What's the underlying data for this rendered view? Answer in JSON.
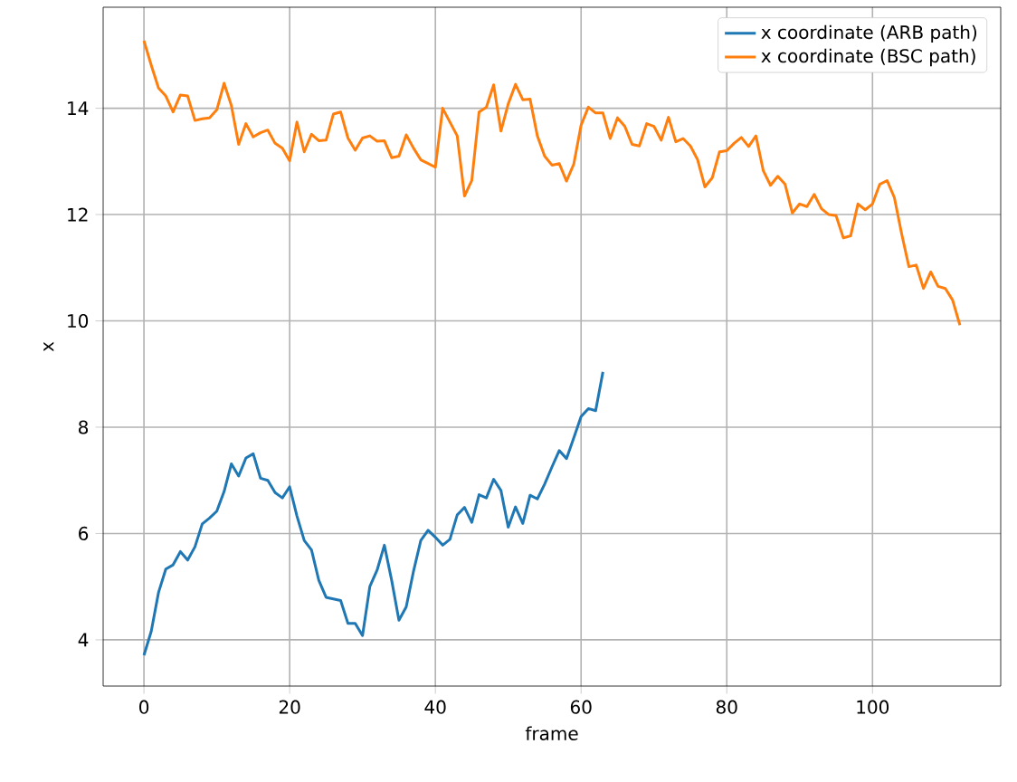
{
  "chart_data": {
    "type": "line",
    "xlabel": "frame",
    "ylabel": "x",
    "grid": true,
    "legend": "top right",
    "xlim": [
      -5.6,
      117.6
    ],
    "ylim": [
      3.13,
      15.9
    ],
    "xticks": [
      0,
      20,
      40,
      60,
      80,
      100
    ],
    "yticks": [
      4,
      6,
      8,
      10,
      12,
      14
    ],
    "series": [
      {
        "name": "x coordinate (ARB path)",
        "color": "#1f77b4",
        "x": [
          0,
          1,
          2,
          3,
          4,
          5,
          6,
          7,
          8,
          9,
          10,
          11,
          12,
          13,
          14,
          15,
          16,
          17,
          18,
          19,
          20,
          21,
          22,
          23,
          24,
          25,
          26,
          27,
          28,
          29,
          30,
          31,
          32,
          33,
          34,
          35,
          36,
          37,
          38,
          39,
          40,
          41,
          42,
          43,
          44,
          45,
          46,
          47,
          48,
          49,
          50,
          51,
          52,
          53,
          54,
          55,
          56,
          57,
          58,
          59,
          60,
          61,
          62,
          63
        ],
        "values": [
          3.71,
          4.16,
          4.89,
          5.33,
          5.41,
          5.66,
          5.5,
          5.75,
          6.18,
          6.29,
          6.42,
          6.79,
          7.31,
          7.08,
          7.42,
          7.5,
          7.04,
          7.0,
          6.77,
          6.67,
          6.88,
          6.33,
          5.87,
          5.69,
          5.12,
          4.8,
          4.77,
          4.74,
          4.31,
          4.31,
          4.08,
          5.0,
          5.31,
          5.78,
          5.12,
          4.37,
          4.62,
          5.29,
          5.87,
          6.06,
          5.93,
          5.78,
          5.89,
          6.35,
          6.49,
          6.21,
          6.73,
          6.67,
          7.02,
          6.81,
          6.12,
          6.5,
          6.19,
          6.72,
          6.65,
          6.93,
          7.25,
          7.56,
          7.41,
          7.8,
          8.2,
          8.35,
          8.31,
          9.04
        ]
      },
      {
        "name": "x coordinate (BSC path)",
        "color": "#ff7f0e",
        "x": [
          0,
          1,
          2,
          3,
          4,
          5,
          6,
          7,
          8,
          9,
          10,
          11,
          12,
          13,
          14,
          15,
          16,
          17,
          18,
          19,
          20,
          21,
          22,
          23,
          24,
          25,
          26,
          27,
          28,
          29,
          30,
          31,
          32,
          33,
          34,
          35,
          36,
          37,
          38,
          39,
          40,
          41,
          42,
          43,
          44,
          45,
          46,
          47,
          48,
          49,
          50,
          51,
          52,
          53,
          54,
          55,
          56,
          57,
          58,
          59,
          60,
          61,
          62,
          63,
          64,
          65,
          66,
          67,
          68,
          69,
          70,
          71,
          72,
          73,
          74,
          75,
          76,
          77,
          78,
          79,
          80,
          81,
          82,
          83,
          84,
          85,
          86,
          87,
          88,
          89,
          90,
          91,
          92,
          93,
          94,
          95,
          96,
          97,
          98,
          99,
          100,
          101,
          102,
          103,
          104,
          105,
          106,
          107,
          108,
          109,
          110,
          111,
          112
        ],
        "values": [
          15.27,
          14.81,
          14.38,
          14.23,
          13.93,
          14.25,
          14.23,
          13.77,
          13.8,
          13.82,
          13.97,
          14.47,
          14.05,
          13.32,
          13.71,
          13.46,
          13.54,
          13.59,
          13.34,
          13.25,
          13.01,
          13.74,
          13.18,
          13.51,
          13.39,
          13.4,
          13.89,
          13.93,
          13.44,
          13.21,
          13.44,
          13.48,
          13.38,
          13.39,
          13.07,
          13.1,
          13.5,
          13.25,
          13.03,
          12.96,
          12.89,
          14.0,
          13.74,
          13.48,
          12.35,
          12.64,
          13.93,
          14.02,
          14.44,
          13.57,
          14.08,
          14.45,
          14.16,
          14.17,
          13.48,
          13.1,
          12.93,
          12.96,
          12.63,
          12.95,
          13.68,
          14.02,
          13.91,
          13.91,
          13.43,
          13.82,
          13.66,
          13.32,
          13.29,
          13.71,
          13.66,
          13.4,
          13.83,
          13.37,
          13.43,
          13.29,
          13.03,
          12.52,
          12.69,
          13.18,
          13.2,
          13.34,
          13.45,
          13.28,
          13.48,
          12.83,
          12.55,
          12.72,
          12.57,
          12.03,
          12.2,
          12.15,
          12.38,
          12.11,
          12.0,
          11.98,
          11.56,
          11.6,
          12.2,
          12.09,
          12.2,
          12.57,
          12.64,
          12.32,
          11.64,
          11.02,
          11.05,
          10.61,
          10.92,
          10.65,
          10.61,
          10.39,
          9.92
        ]
      }
    ]
  }
}
